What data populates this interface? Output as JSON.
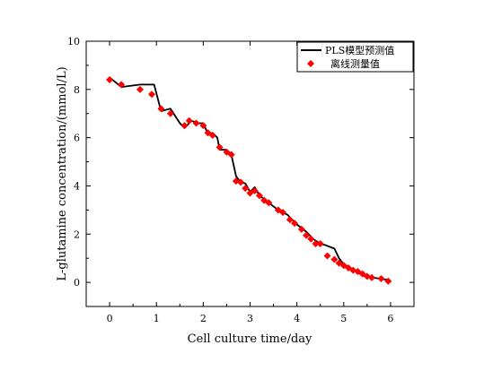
{
  "chart_data": {
    "type": "line",
    "title": "",
    "xlabel": "Cell culture time/day",
    "ylabel": "L-glutamine concentration/(mmol/L)",
    "xlim": [
      -0.5,
      6.5
    ],
    "ylim": [
      -1,
      10
    ],
    "xticks": [
      0,
      1,
      2,
      3,
      4,
      5,
      6
    ],
    "yticks": [
      0,
      2,
      4,
      6,
      8,
      10
    ],
    "grid": false,
    "legend_position": "top-right",
    "series": [
      {
        "name": "PLS模型预测值",
        "kind": "line",
        "color": "#000000",
        "points": [
          [
            0.0,
            8.5
          ],
          [
            0.25,
            8.1
          ],
          [
            0.65,
            8.2
          ],
          [
            0.95,
            8.2
          ],
          [
            1.1,
            7.1
          ],
          [
            1.3,
            7.2
          ],
          [
            1.5,
            6.6
          ],
          [
            1.6,
            6.4
          ],
          [
            1.75,
            6.7
          ],
          [
            1.9,
            6.6
          ],
          [
            2.0,
            6.6
          ],
          [
            2.1,
            6.15
          ],
          [
            2.2,
            6.2
          ],
          [
            2.3,
            6.0
          ],
          [
            2.35,
            5.5
          ],
          [
            2.5,
            5.5
          ],
          [
            2.6,
            5.3
          ],
          [
            2.7,
            4.4
          ],
          [
            2.8,
            4.15
          ],
          [
            2.9,
            4.1
          ],
          [
            3.0,
            3.75
          ],
          [
            3.1,
            3.95
          ],
          [
            3.2,
            3.6
          ],
          [
            3.4,
            3.3
          ],
          [
            3.6,
            3.0
          ],
          [
            3.8,
            2.8
          ],
          [
            4.0,
            2.4
          ],
          [
            4.2,
            2.1
          ],
          [
            4.35,
            1.8
          ],
          [
            4.5,
            1.6
          ],
          [
            4.6,
            1.55
          ],
          [
            4.8,
            1.4
          ],
          [
            4.9,
            1.0
          ],
          [
            5.0,
            0.75
          ],
          [
            5.1,
            0.65
          ],
          [
            5.3,
            0.4
          ],
          [
            5.45,
            0.25
          ],
          [
            5.6,
            0.2
          ],
          [
            5.8,
            0.15
          ],
          [
            5.95,
            0.1
          ]
        ]
      },
      {
        "name": "离线测量值",
        "kind": "scatter",
        "marker": "diamond",
        "color": "#ff0000",
        "points": [
          [
            0.0,
            8.4
          ],
          [
            0.25,
            8.2
          ],
          [
            0.65,
            8.0
          ],
          [
            0.9,
            7.8
          ],
          [
            1.1,
            7.2
          ],
          [
            1.3,
            7.0
          ],
          [
            1.6,
            6.5
          ],
          [
            1.7,
            6.7
          ],
          [
            1.85,
            6.6
          ],
          [
            2.0,
            6.5
          ],
          [
            2.1,
            6.2
          ],
          [
            2.2,
            6.1
          ],
          [
            2.35,
            5.6
          ],
          [
            2.5,
            5.4
          ],
          [
            2.6,
            5.3
          ],
          [
            2.7,
            4.2
          ],
          [
            2.8,
            4.15
          ],
          [
            2.9,
            3.9
          ],
          [
            3.0,
            3.7
          ],
          [
            3.1,
            3.8
          ],
          [
            3.2,
            3.6
          ],
          [
            3.3,
            3.4
          ],
          [
            3.4,
            3.3
          ],
          [
            3.6,
            3.0
          ],
          [
            3.7,
            2.9
          ],
          [
            3.85,
            2.6
          ],
          [
            3.95,
            2.45
          ],
          [
            4.1,
            2.2
          ],
          [
            4.2,
            1.95
          ],
          [
            4.3,
            1.8
          ],
          [
            4.4,
            1.6
          ],
          [
            4.5,
            1.6
          ],
          [
            4.65,
            1.1
          ],
          [
            4.8,
            0.95
          ],
          [
            4.9,
            0.8
          ],
          [
            5.0,
            0.7
          ],
          [
            5.1,
            0.6
          ],
          [
            5.2,
            0.5
          ],
          [
            5.3,
            0.45
          ],
          [
            5.4,
            0.35
          ],
          [
            5.5,
            0.25
          ],
          [
            5.6,
            0.2
          ],
          [
            5.8,
            0.15
          ],
          [
            5.95,
            0.05
          ]
        ]
      }
    ]
  }
}
